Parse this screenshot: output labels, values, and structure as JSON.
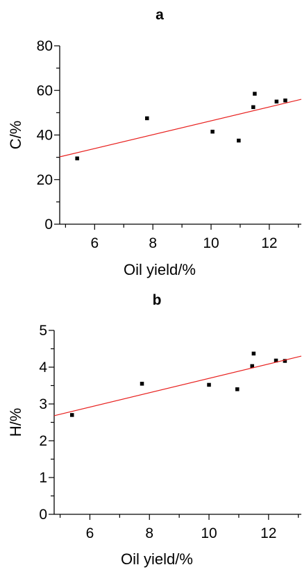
{
  "chart_data": [
    {
      "type": "scatter",
      "title": "a",
      "xlabel": "Oil yield/%",
      "ylabel": "C/%",
      "xlim": [
        4.8,
        13.1
      ],
      "ylim": [
        0,
        80
      ],
      "xticks": [
        6,
        8,
        10,
        12
      ],
      "yticks": [
        0,
        20,
        40,
        60,
        80
      ],
      "xtick_labels": [
        "6",
        "8",
        "10",
        "12"
      ],
      "ytick_labels": [
        "0",
        "20",
        "40",
        "60",
        "80"
      ],
      "grid": false,
      "series": [
        {
          "kind": "points",
          "color": "#000000",
          "points": [
            {
              "x": 5.4,
              "y": 29.5
            },
            {
              "x": 7.8,
              "y": 47.5
            },
            {
              "x": 10.05,
              "y": 41.5
            },
            {
              "x": 10.95,
              "y": 37.5
            },
            {
              "x": 11.45,
              "y": 52.5
            },
            {
              "x": 11.5,
              "y": 58.5
            },
            {
              "x": 12.25,
              "y": 55.0
            },
            {
              "x": 12.55,
              "y": 55.5
            }
          ]
        },
        {
          "kind": "fit-line",
          "color": "#e8201e",
          "points": [
            {
              "x": 4.8,
              "y": 30.2
            },
            {
              "x": 13.1,
              "y": 56.0
            }
          ]
        }
      ]
    },
    {
      "type": "scatter",
      "title": "b",
      "xlabel": "Oil yield/%",
      "ylabel": "H/%",
      "xlim": [
        4.8,
        13.1
      ],
      "ylim": [
        0,
        5
      ],
      "xticks": [
        6,
        8,
        10,
        12
      ],
      "yticks": [
        0,
        1,
        2,
        3,
        4,
        5
      ],
      "xtick_labels": [
        "6",
        "8",
        "10",
        "12"
      ],
      "ytick_labels": [
        "0",
        "1",
        "2",
        "3",
        "4",
        "5"
      ],
      "grid": false,
      "series": [
        {
          "kind": "points",
          "color": "#000000",
          "points": [
            {
              "x": 5.4,
              "y": 2.7
            },
            {
              "x": 7.75,
              "y": 3.55
            },
            {
              "x": 10.0,
              "y": 3.52
            },
            {
              "x": 10.95,
              "y": 3.4
            },
            {
              "x": 11.45,
              "y": 4.03
            },
            {
              "x": 11.5,
              "y": 4.37
            },
            {
              "x": 12.25,
              "y": 4.18
            },
            {
              "x": 12.55,
              "y": 4.17
            }
          ]
        },
        {
          "kind": "fit-line",
          "color": "#e8201e",
          "points": [
            {
              "x": 4.8,
              "y": 2.68
            },
            {
              "x": 13.1,
              "y": 4.3
            }
          ]
        }
      ]
    }
  ]
}
